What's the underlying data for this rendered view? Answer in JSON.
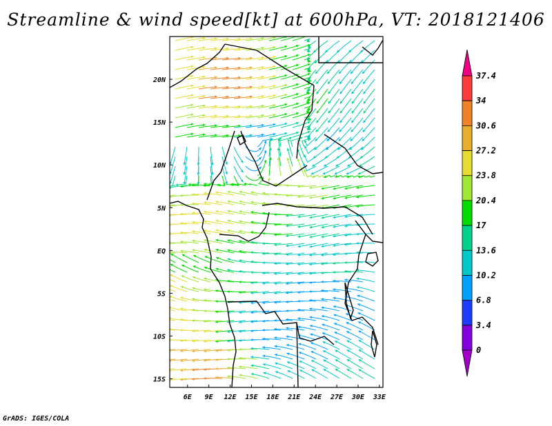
{
  "title": "Streamline & wind speed[kt] at 600hPa, VT: 2018121406",
  "footer": "GrADS: IGES/COLA",
  "map": {
    "lon_ticks": [
      "6E",
      "9E",
      "12E",
      "15E",
      "18E",
      "21E",
      "24E",
      "27E",
      "30E",
      "33E"
    ],
    "lon_values": [
      6,
      9,
      12,
      15,
      18,
      21,
      24,
      27,
      30,
      33
    ],
    "lat_ticks": [
      "20N",
      "15N",
      "10N",
      "5N",
      "EQ",
      "5S",
      "10S",
      "15S"
    ],
    "lat_values": [
      20,
      15,
      10,
      5,
      0,
      -5,
      -10,
      -15
    ],
    "lon_range": [
      3.5,
      33.5
    ],
    "lat_range": [
      -16,
      25
    ]
  },
  "colorbar": {
    "labels": [
      "37.4",
      "34",
      "30.6",
      "27.2",
      "23.8",
      "20.4",
      "17",
      "13.6",
      "10.2",
      "6.8",
      "3.4",
      "0"
    ],
    "colors": [
      "#f00082",
      "#fa3c3c",
      "#f08228",
      "#e6af2d",
      "#e6dc32",
      "#a0e632",
      "#00dc00",
      "#00d28c",
      "#00c8c8",
      "#00a0ff",
      "#1e3cff",
      "#8200dc",
      "#a000c8"
    ]
  },
  "field": {
    "cols": 12,
    "rows": 16,
    "speed_grid": [
      [
        24,
        25,
        25,
        24,
        21,
        19,
        17,
        16,
        14,
        13,
        12,
        11
      ],
      [
        26,
        30,
        31,
        30,
        24,
        20,
        18,
        17,
        15,
        14,
        13,
        12
      ],
      [
        26,
        31,
        33,
        31,
        25,
        21,
        19,
        18,
        17,
        16,
        15,
        14
      ],
      [
        22,
        26,
        27,
        26,
        22,
        19,
        18,
        17,
        15,
        13,
        12,
        12
      ],
      [
        17,
        18,
        17,
        13,
        9,
        12,
        14,
        14,
        12,
        10,
        11,
        12
      ],
      [
        13,
        13,
        12,
        11,
        10,
        14,
        16,
        15,
        13,
        12,
        13,
        14
      ],
      [
        16,
        18,
        20,
        20,
        19,
        20,
        21,
        21,
        21,
        20,
        20,
        19
      ],
      [
        21,
        23,
        25,
        24,
        23,
        22,
        22,
        21,
        21,
        20,
        20,
        19
      ],
      [
        24,
        25,
        25,
        24,
        22,
        20,
        18,
        16,
        15,
        14,
        12,
        12
      ],
      [
        22,
        22,
        21,
        19,
        17,
        16,
        15,
        13,
        12,
        11,
        11,
        12
      ],
      [
        20,
        20,
        19,
        18,
        16,
        14,
        12,
        12,
        13,
        14,
        14,
        13
      ],
      [
        24,
        23,
        22,
        20,
        17,
        13,
        11,
        9,
        8,
        9,
        10,
        11
      ],
      [
        26,
        25,
        22,
        17,
        13,
        10,
        8,
        7,
        8,
        8,
        9,
        10
      ],
      [
        27,
        27,
        25,
        20,
        13,
        9,
        7,
        7,
        8,
        7,
        8,
        9
      ],
      [
        28,
        30,
        30,
        28,
        22,
        13,
        10,
        10,
        10,
        11,
        12,
        13
      ],
      [
        26,
        29,
        31,
        29,
        23,
        15,
        12,
        12,
        12,
        13,
        14,
        15
      ]
    ]
  }
}
